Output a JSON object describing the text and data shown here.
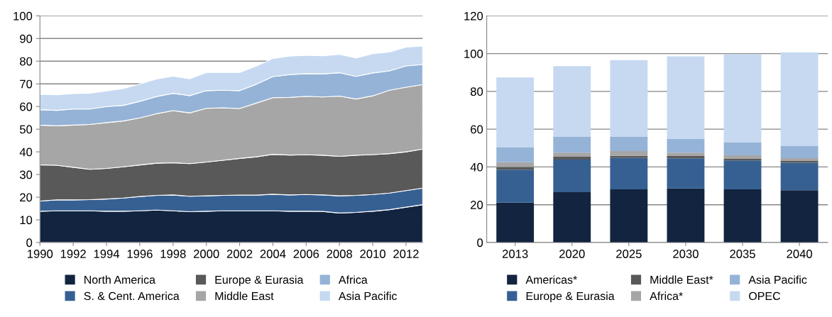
{
  "chart_data": [
    {
      "type": "area",
      "stacked": true,
      "x": [
        1990,
        1991,
        1992,
        1993,
        1994,
        1995,
        1996,
        1997,
        1998,
        1999,
        2000,
        2001,
        2002,
        2003,
        2004,
        2005,
        2006,
        2007,
        2008,
        2009,
        2010,
        2011,
        2012,
        2013
      ],
      "xlim": [
        1990,
        2013
      ],
      "xticks": [
        1990,
        1992,
        1994,
        1996,
        1998,
        2000,
        2002,
        2004,
        2006,
        2008,
        2010,
        2012
      ],
      "ylim": [
        0,
        100
      ],
      "yticks": [
        0,
        10,
        20,
        30,
        40,
        50,
        60,
        70,
        80,
        90,
        100
      ],
      "grid": "y",
      "legend": "bottom",
      "series": [
        {
          "name": "North America",
          "color": "#12243f",
          "values": [
            13.8,
            14,
            14,
            14,
            13.8,
            13.8,
            14,
            14.3,
            14,
            13.6,
            13.8,
            14,
            14,
            14,
            14,
            13.8,
            13.8,
            13.7,
            13,
            13.3,
            13.8,
            14.5,
            15.6,
            16.7
          ]
        },
        {
          "name": "S. & Cent. America",
          "color": "#376092",
          "values": [
            4.5,
            4.8,
            4.8,
            4.9,
            5.4,
            5.8,
            6.3,
            6.5,
            7,
            6.8,
            6.8,
            6.8,
            6.9,
            6.9,
            7.3,
            7.2,
            7.4,
            7.3,
            7.6,
            7.5,
            7.4,
            7.3,
            7.3,
            7.3
          ]
        },
        {
          "name": "Europe & Eurasia",
          "color": "#595959",
          "values": [
            16.0,
            15.3,
            14.4,
            13.4,
            13.5,
            13.8,
            13.9,
            14.2,
            14.2,
            14.4,
            14.9,
            15.5,
            16.2,
            16.9,
            17.6,
            17.6,
            17.5,
            17.5,
            17.4,
            17.7,
            17.6,
            17.4,
            17.1,
            17.2
          ]
        },
        {
          "name": "Middle East",
          "color": "#a6a6a6",
          "values": [
            17.5,
            17.4,
            18.6,
            19.8,
            20.2,
            20.2,
            20.8,
            21.8,
            23,
            22.4,
            23.7,
            23.1,
            22,
            23.7,
            25,
            25.4,
            25.8,
            25.7,
            26.6,
            24.8,
            25.9,
            28,
            28.5,
            28.5
          ]
        },
        {
          "name": "Africa",
          "color": "#95b3d7",
          "values": [
            6.8,
            6.8,
            7.1,
            6.8,
            7.1,
            6.9,
            7.3,
            7.6,
            7.6,
            7.6,
            7.8,
            7.8,
            7.9,
            8.3,
            9.3,
            10.1,
            10,
            10.2,
            10.3,
            10,
            10.1,
            8.5,
            9.4,
            8.8
          ]
        },
        {
          "name": "Asia Pacific",
          "color": "#c6d9f1",
          "values": [
            6.8,
            6.9,
            6.8,
            7,
            6.9,
            7.4,
            7.6,
            7.7,
            7.6,
            7.4,
            8,
            7.9,
            8,
            8,
            8,
            8.1,
            8.1,
            8,
            8.1,
            8.1,
            8.5,
            8.3,
            8.3,
            8.2
          ]
        }
      ]
    },
    {
      "type": "bar",
      "stacked": true,
      "categories": [
        "2013",
        "2020",
        "2025",
        "2030",
        "2035",
        "2040"
      ],
      "ylim": [
        0,
        120
      ],
      "yticks": [
        0,
        20,
        40,
        60,
        80,
        100,
        120
      ],
      "grid": "y",
      "legend": "bottom",
      "series": [
        {
          "name": "Americas*",
          "color": "#12243f",
          "values": [
            21.1,
            26.6,
            28.1,
            28.6,
            28.1,
            27.7
          ]
        },
        {
          "name": "Europe & Eurasia",
          "color": "#376092",
          "values": [
            17.5,
            17.3,
            16.7,
            16.0,
            15.3,
            14.5
          ]
        },
        {
          "name": "Middle East*",
          "color": "#595959",
          "values": [
            1.4,
            1.5,
            1.1,
            1.2,
            0.9,
            1.0
          ]
        },
        {
          "name": "Africa*",
          "color": "#a6a6a6",
          "values": [
            2.5,
            2.2,
            2.5,
            1.8,
            1.9,
            1.5
          ]
        },
        {
          "name": "Asia Pacific",
          "color": "#95b3d7",
          "values": [
            8.0,
            8.5,
            7.7,
            7.3,
            6.9,
            6.5
          ]
        },
        {
          "name": "OPEC",
          "color": "#c6d9f1",
          "values": [
            36.9,
            37.3,
            40.5,
            43.6,
            46.6,
            49.5
          ]
        }
      ]
    }
  ]
}
